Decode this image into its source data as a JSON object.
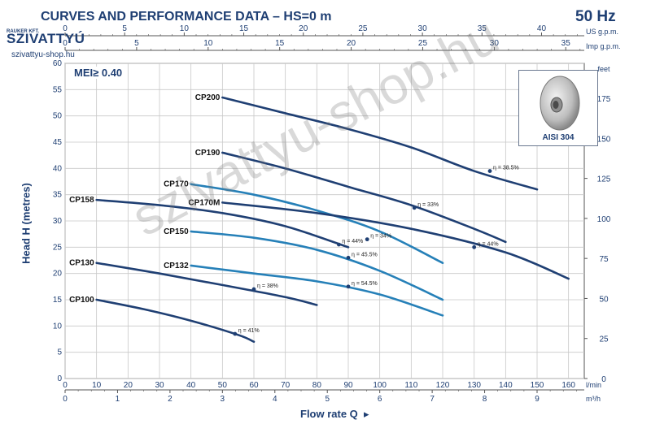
{
  "header": {
    "title": "CURVES AND PERFORMANCE DATA  –  HS=0 m",
    "frequency": "50 Hz",
    "mei": "MEI≥ 0.40",
    "watermark": "szivattyu-shop.hu"
  },
  "logo": {
    "brand": "SZIVATTYÚ",
    "small": "RAUKER KFT.",
    "url": "szivattyu-shop.hu"
  },
  "inset": {
    "label": "AISI 304"
  },
  "colors": {
    "dark": "#1f3f73",
    "light": "#2680b8",
    "grid": "#c8c8c8",
    "text": "#1f3f73"
  },
  "chart_data": {
    "type": "line",
    "title": "CURVES AND PERFORMANCE DATA  –  HS=0 m",
    "xlabel": "Flow rate Q",
    "ylabel": "Head H (metres)",
    "xlim": [
      0,
      160
    ],
    "ylim": [
      0,
      60
    ],
    "x_unit": "l/min",
    "axes": {
      "bottom_lmin": {
        "unit": "l/min",
        "ticks": [
          0,
          10,
          20,
          30,
          40,
          50,
          60,
          70,
          80,
          90,
          100,
          110,
          120,
          130,
          140,
          150,
          160
        ]
      },
      "bottom_m3h": {
        "unit": "m³/h",
        "ticks": [
          0,
          1,
          2,
          3,
          4,
          5,
          6,
          7,
          8,
          9
        ]
      },
      "top_usgpm": {
        "unit": "US g.p.m.",
        "ticks": [
          0,
          5,
          10,
          15,
          20,
          25,
          30,
          35,
          40
        ]
      },
      "top_impgpm": {
        "unit": "Imp g.p.m.",
        "ticks": [
          0,
          5,
          10,
          15,
          20,
          25,
          30,
          35
        ]
      },
      "left_m": {
        "ticks": [
          0,
          5,
          10,
          15,
          20,
          25,
          30,
          35,
          40,
          45,
          50,
          55,
          60
        ]
      },
      "right_feet": {
        "unit": "feet",
        "ticks": [
          0,
          25,
          50,
          75,
          100,
          125,
          150,
          175
        ]
      }
    },
    "grid": true,
    "series": [
      {
        "name": "CP200",
        "style": "dark",
        "x": [
          50,
          70,
          90,
          110,
          130,
          150
        ],
        "y": [
          53.5,
          50.5,
          47.5,
          44,
          39.5,
          36
        ]
      },
      {
        "name": "CP190",
        "style": "dark",
        "x": [
          50,
          70,
          90,
          110,
          130,
          140
        ],
        "y": [
          43,
          40,
          36.5,
          33,
          28.5,
          26
        ]
      },
      {
        "name": "CP170",
        "style": "light",
        "x": [
          40,
          60,
          80,
          100,
          120
        ],
        "y": [
          37,
          35,
          32,
          28,
          22
        ]
      },
      {
        "name": "CP170M",
        "style": "dark",
        "x": [
          50,
          80,
          110,
          140,
          160
        ],
        "y": [
          33.5,
          31.5,
          28.5,
          24,
          19
        ]
      },
      {
        "name": "CP158",
        "style": "dark",
        "x": [
          10,
          30,
          50,
          70,
          90
        ],
        "y": [
          34,
          33,
          31.5,
          29,
          25
        ]
      },
      {
        "name": "CP150",
        "style": "light",
        "x": [
          40,
          60,
          80,
          100,
          120
        ],
        "y": [
          28,
          26.8,
          24.5,
          20.5,
          15
        ]
      },
      {
        "name": "CP132",
        "style": "light",
        "x": [
          40,
          60,
          80,
          100,
          120
        ],
        "y": [
          21.5,
          20,
          18.5,
          16,
          12
        ]
      },
      {
        "name": "CP130",
        "style": "dark",
        "x": [
          10,
          30,
          50,
          70,
          80
        ],
        "y": [
          22,
          20,
          17.8,
          15.5,
          14
        ]
      },
      {
        "name": "CP100",
        "style": "dark",
        "x": [
          10,
          25,
          40,
          55,
          60
        ],
        "y": [
          15,
          13.2,
          11,
          8.3,
          7
        ]
      }
    ],
    "efficiency_points": [
      {
        "label": "η = 38.5%",
        "x": 135,
        "y": 39.5
      },
      {
        "label": "η = 33%",
        "x": 111,
        "y": 32.5
      },
      {
        "label": "η = 34%",
        "x": 96,
        "y": 26.5
      },
      {
        "label": "η = 44%",
        "x": 87,
        "y": 25.5
      },
      {
        "label": "η = 45.5%",
        "x": 90,
        "y": 23
      },
      {
        "label": "η = 44%",
        "x": 130,
        "y": 25
      },
      {
        "label": "η = 54.5%",
        "x": 90,
        "y": 17.5
      },
      {
        "label": "η = 38%",
        "x": 60,
        "y": 17
      },
      {
        "label": "η = 41%",
        "x": 54,
        "y": 8.5
      }
    ]
  }
}
